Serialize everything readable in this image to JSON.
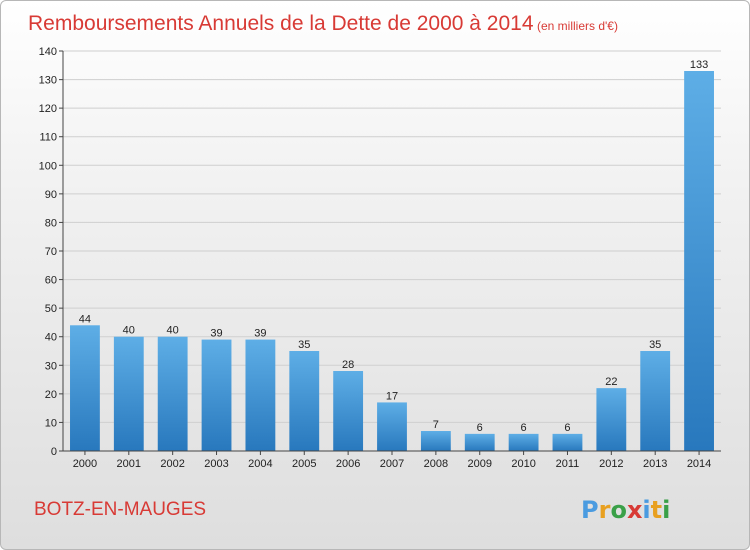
{
  "header": {
    "title": "Remboursements Annuels de la Dette de 2000 à 2014",
    "subtitle": "(en milliers d'€)"
  },
  "footer": {
    "city": "BOTZ-EN-MAUGES",
    "logo": "Proxiti"
  },
  "colors": {
    "title": "#d83a35",
    "bar_light": "#5aaae4",
    "bar_dark": "#2a7fc4",
    "axis": "#444444",
    "grid": "#cfcfcf"
  },
  "chart_data": {
    "type": "bar",
    "categories": [
      "2000",
      "2001",
      "2002",
      "2003",
      "2004",
      "2005",
      "2006",
      "2007",
      "2008",
      "2009",
      "2010",
      "2011",
      "2012",
      "2013",
      "2014"
    ],
    "values": [
      44,
      40,
      40,
      39,
      39,
      35,
      28,
      17,
      7,
      6,
      6,
      6,
      22,
      35,
      133
    ],
    "ylim": [
      0,
      140
    ],
    "yticks": [
      0,
      10,
      20,
      30,
      40,
      50,
      60,
      70,
      80,
      90,
      100,
      110,
      120,
      130,
      140
    ],
    "grid": true,
    "data_labels": true
  }
}
